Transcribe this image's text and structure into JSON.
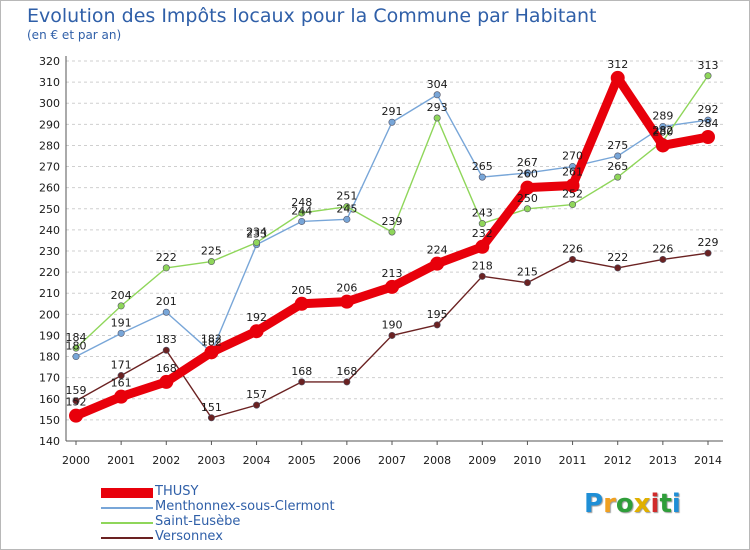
{
  "title": "Evolution des Impôts locaux pour la Commune par Habitant",
  "subtitle": "(en € et par an)",
  "brand": "Proxiti",
  "brand_colors": [
    "#1f8fd6",
    "#f0a020",
    "#2f9e3a",
    "#e0b000",
    "#d02b2b",
    "#2f9e3a",
    "#1f8fd6"
  ],
  "chart_data": {
    "type": "line",
    "title": "Evolution des Impôts locaux pour la Commune par Habitant",
    "subtitle": "(en € et par an)",
    "x": [
      "2000",
      "2001",
      "2002",
      "2003",
      "2004",
      "2005",
      "2006",
      "2007",
      "2008",
      "2009",
      "2010",
      "2011",
      "2012",
      "2013",
      "2014"
    ],
    "ylim": [
      140,
      320
    ],
    "ytick_step": 10,
    "grid": "horizontal dashed",
    "legend_position": "bottom-left",
    "series": [
      {
        "name": "THUSY",
        "color": "#e8000b",
        "emphasis": true,
        "values": [
          152,
          161,
          168,
          182,
          192,
          205,
          206,
          213,
          224,
          232,
          260,
          261,
          312,
          280,
          284
        ]
      },
      {
        "name": "Menthonnex-sous-Clermont",
        "color": "#78a6d8",
        "values": [
          180,
          191,
          201,
          182,
          233,
          244,
          245,
          291,
          304,
          265,
          267,
          270,
          275,
          289,
          292
        ]
      },
      {
        "name": "Saint-Eusèbe",
        "color": "#8fd65a",
        "values": [
          184,
          204,
          222,
          225,
          234,
          248,
          251,
          239,
          293,
          243,
          250,
          252,
          265,
          282,
          313
        ]
      },
      {
        "name": "Versonnex",
        "color": "#6b2222",
        "values": [
          159,
          171,
          183,
          151,
          157,
          168,
          168,
          190,
          195,
          218,
          215,
          226,
          222,
          226,
          229
        ]
      }
    ]
  }
}
